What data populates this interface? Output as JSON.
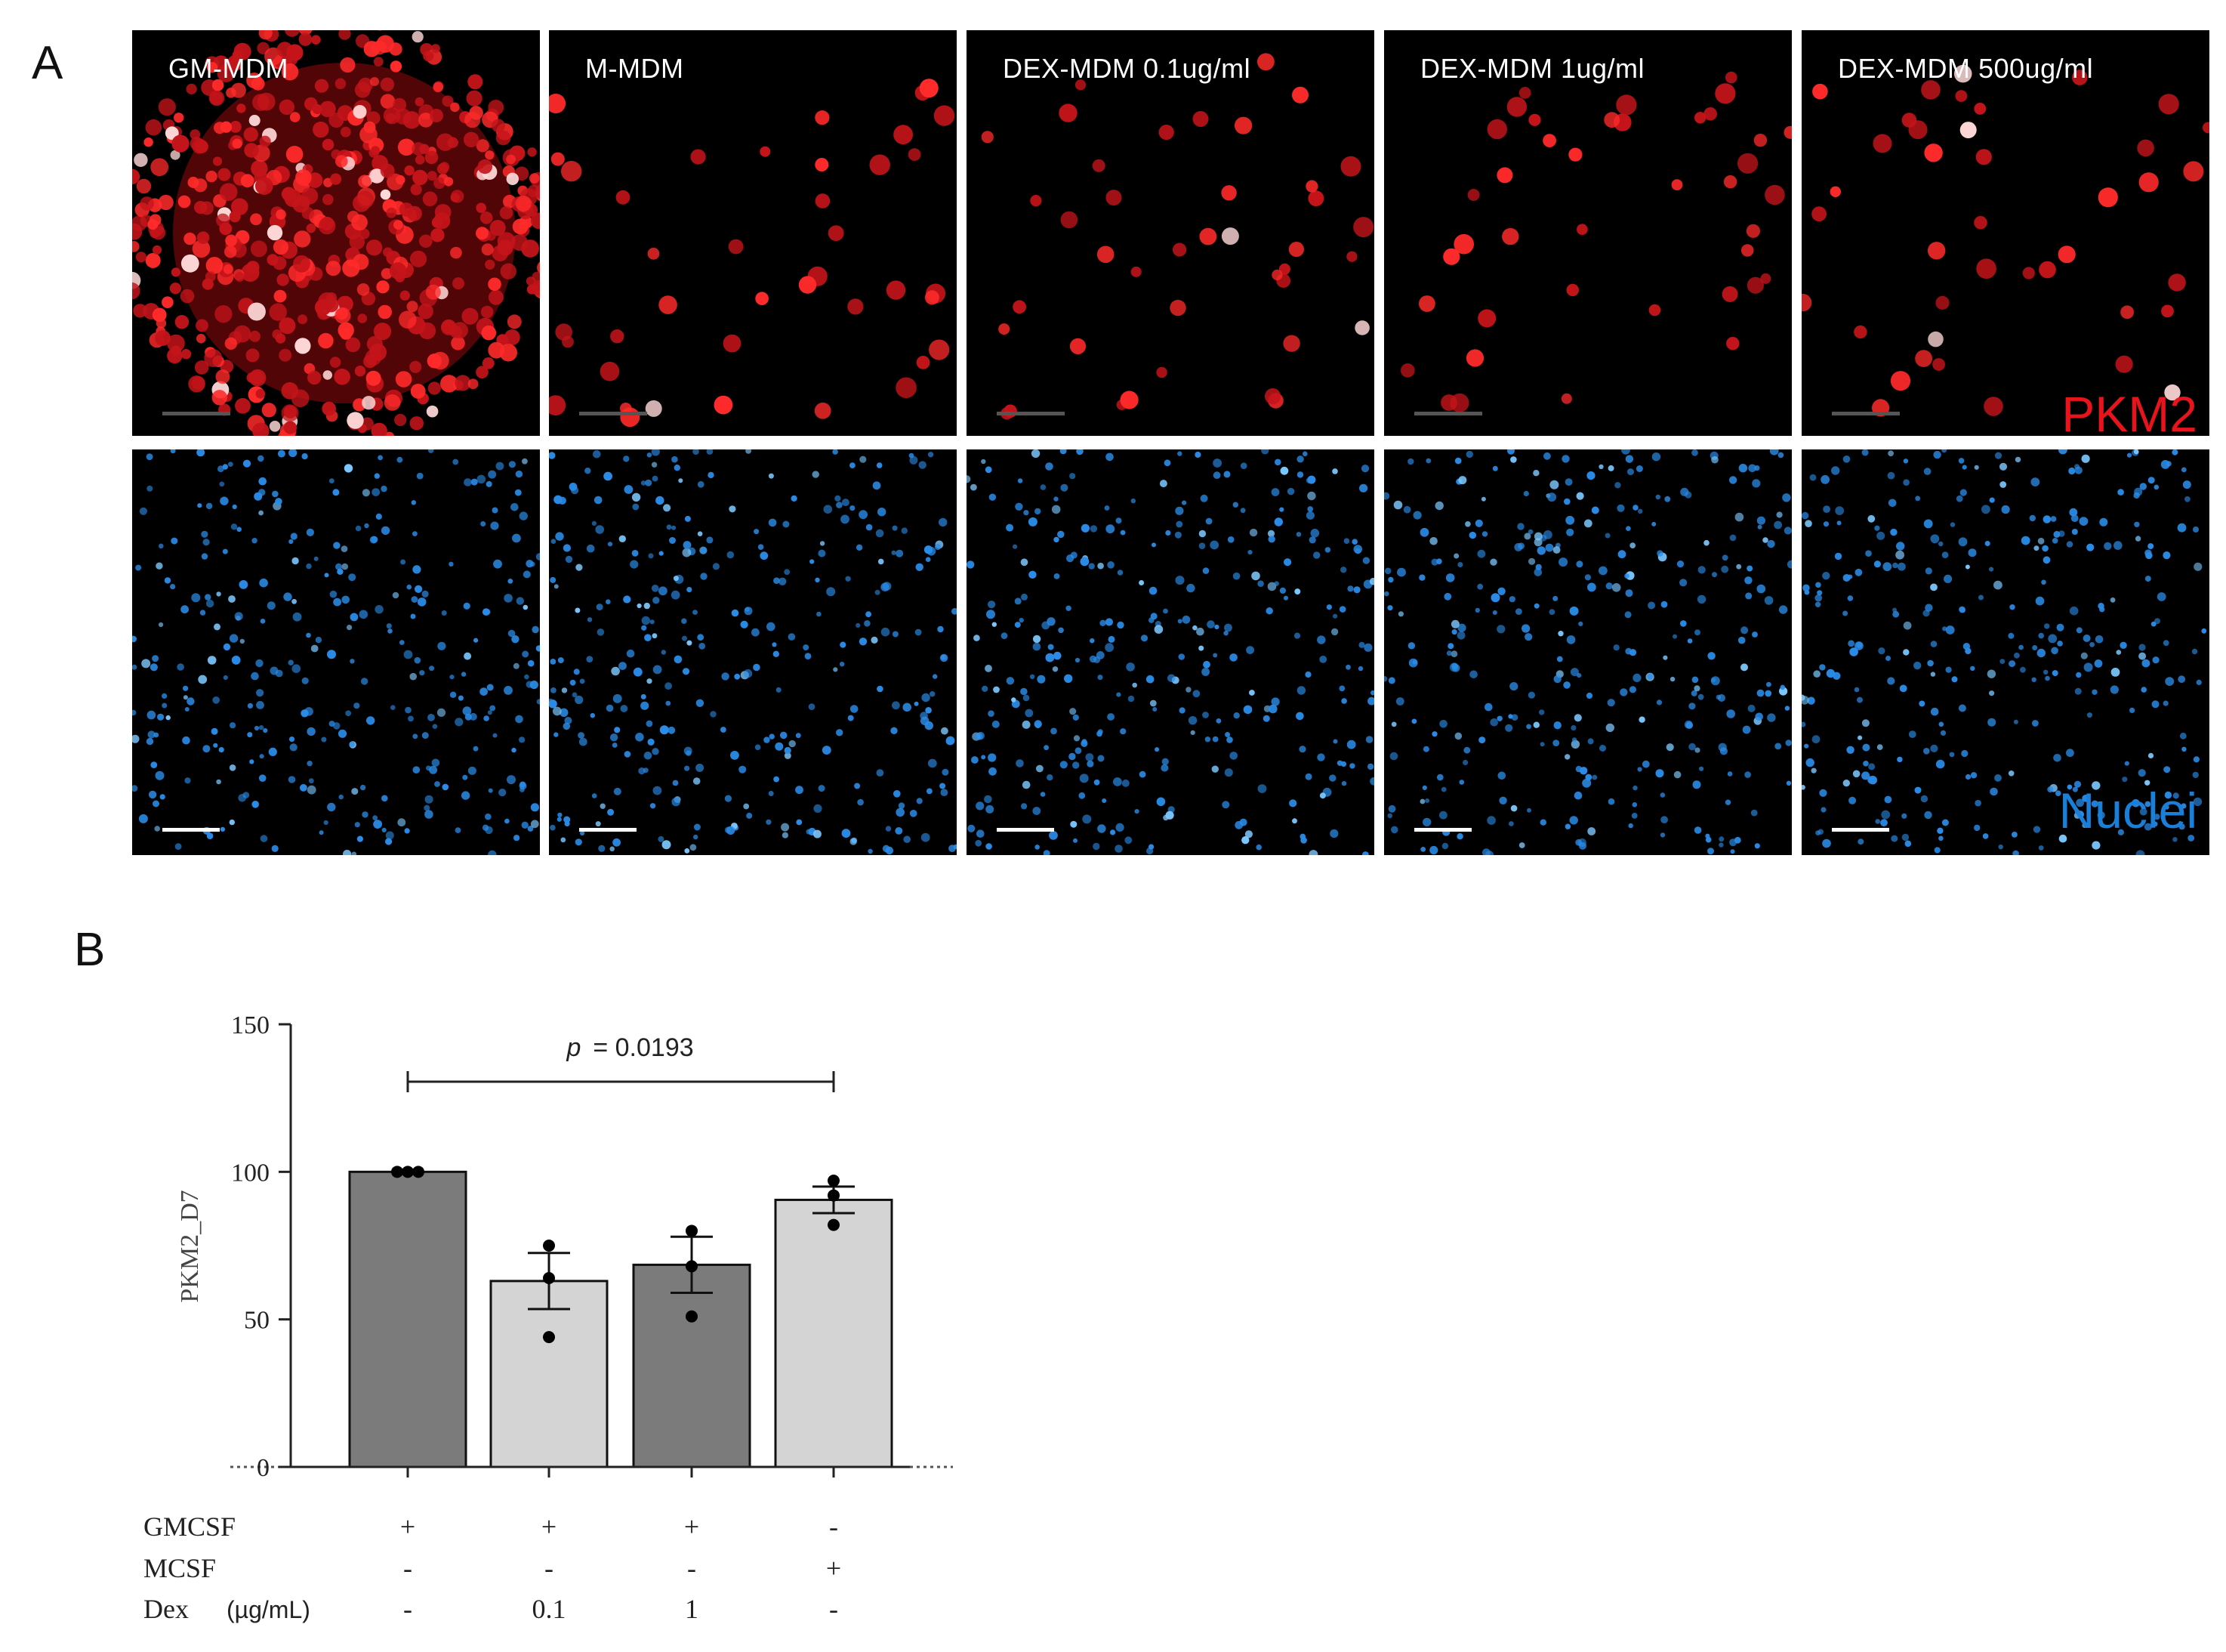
{
  "panel_a": {
    "letter": "A",
    "columns": [
      {
        "label": "GM-MDM",
        "density": "dense"
      },
      {
        "label": "M-MDM",
        "density": "sparse"
      },
      {
        "label": "DEX-MDM 0.1ug/ml",
        "density": "sparse"
      },
      {
        "label": "DEX-MDM 1ug/ml",
        "density": "sparse"
      },
      {
        "label": "DEX-MDM 500ug/ml",
        "density": "sparse"
      }
    ],
    "rows": [
      {
        "channel": "PKM2",
        "color": "#e8141c"
      },
      {
        "channel": "Nuclei",
        "color": "#1a7fd8"
      }
    ]
  },
  "panel_b": {
    "letter": "B",
    "condition_labels": {
      "gmcsf": "GMCSF",
      "mcsf": "MCSF",
      "dex": "Dex",
      "dex_unit": "(µg/mL)"
    },
    "conditions": [
      {
        "gmcsf": "+",
        "mcsf": "-",
        "dex": "-"
      },
      {
        "gmcsf": "+",
        "mcsf": "-",
        "dex": "0.1"
      },
      {
        "gmcsf": "+",
        "mcsf": "-",
        "dex": "1"
      },
      {
        "gmcsf": "-",
        "mcsf": "+",
        "dex": "-"
      }
    ]
  },
  "chart_data": {
    "type": "bar",
    "ylabel": "PKM2_D7",
    "ylim": [
      0,
      150
    ],
    "yticks": [
      0,
      50,
      100,
      150
    ],
    "categories": [
      "GMCSF",
      "GMCSF + Dex 0.1",
      "GMCSF + Dex 1",
      "MCSF"
    ],
    "values": [
      100,
      63,
      68.5,
      90.5
    ],
    "sem": [
      0,
      9.5,
      9.5,
      4.5
    ],
    "points": [
      [
        100,
        100,
        100
      ],
      [
        75,
        64,
        44
      ],
      [
        80,
        68,
        51
      ],
      [
        97,
        92,
        82
      ]
    ],
    "bar_colors": [
      "#7b7b7b",
      "#d4d4d4",
      "#7b7b7b",
      "#d4d4d4"
    ],
    "significance": {
      "from": 0,
      "to": 3,
      "label": "p",
      "value": "= 0.0193"
    }
  }
}
